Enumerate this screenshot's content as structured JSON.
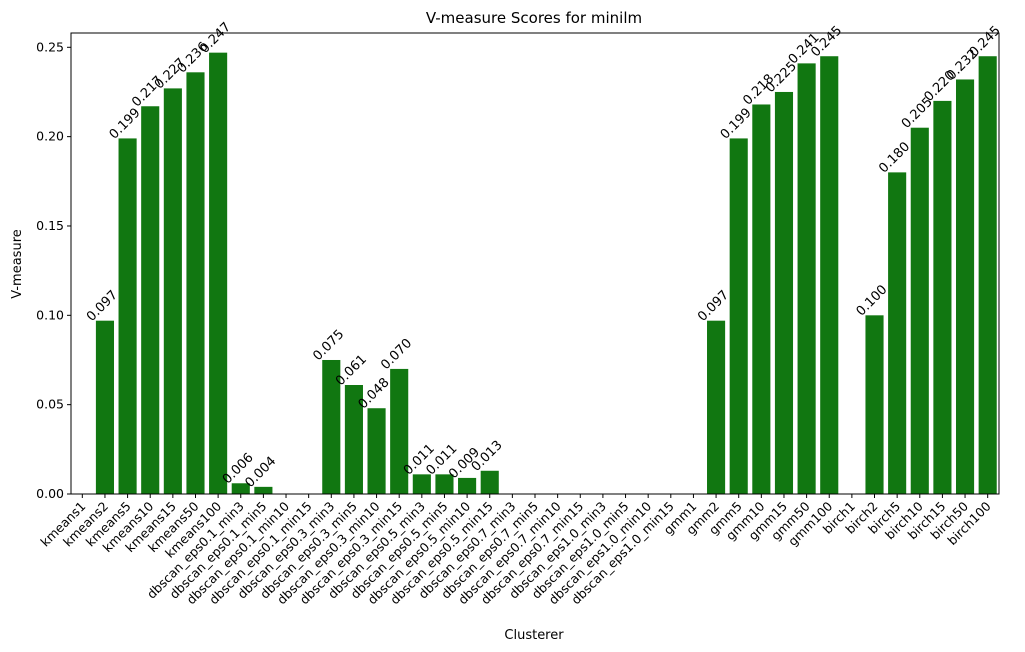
{
  "chart_data": {
    "type": "bar",
    "title": "V-measure Scores for minilm",
    "xlabel": "Clusterer",
    "ylabel": "V-measure",
    "ylim": [
      0,
      0.258
    ],
    "yticks": [
      "0.00",
      "0.05",
      "0.10",
      "0.15",
      "0.20",
      "0.25"
    ],
    "grid": false,
    "bar_color": "#117711",
    "categories": [
      "kmeans1",
      "kmeans2",
      "kmeans5",
      "kmeans10",
      "kmeans15",
      "kmeans50",
      "kmeans100",
      "dbscan_eps0.1_min3",
      "dbscan_eps0.1_min5",
      "dbscan_eps0.1_min10",
      "dbscan_eps0.1_min15",
      "dbscan_eps0.3_min3",
      "dbscan_eps0.3_min5",
      "dbscan_eps0.3_min10",
      "dbscan_eps0.3_min15",
      "dbscan_eps0.5_min3",
      "dbscan_eps0.5_min5",
      "dbscan_eps0.5_min10",
      "dbscan_eps0.5_min15",
      "dbscan_eps0.7_min3",
      "dbscan_eps0.7_min5",
      "dbscan_eps0.7_min10",
      "dbscan_eps0.7_min15",
      "dbscan_eps1.0_min3",
      "dbscan_eps1.0_min5",
      "dbscan_eps1.0_min10",
      "dbscan_eps1.0_min15",
      "gmm1",
      "gmm2",
      "gmm5",
      "gmm10",
      "gmm15",
      "gmm50",
      "gmm100",
      "birch1",
      "birch2",
      "birch5",
      "birch10",
      "birch15",
      "birch50",
      "birch100"
    ],
    "values": [
      0.0,
      0.097,
      0.199,
      0.217,
      0.227,
      0.236,
      0.247,
      0.006,
      0.004,
      0.0,
      0.0,
      0.075,
      0.061,
      0.048,
      0.07,
      0.011,
      0.011,
      0.009,
      0.013,
      0.0,
      0.0,
      0.0,
      0.0,
      0.0,
      0.0,
      0.0,
      0.0,
      0.0,
      0.097,
      0.199,
      0.218,
      0.225,
      0.241,
      0.245,
      0.0,
      0.1,
      0.18,
      0.205,
      0.22,
      0.232,
      0.245
    ],
    "data_labels": [
      null,
      "0.097",
      "0.199",
      "0.217",
      "0.227",
      "0.236",
      "0.247",
      "0.006",
      "0.004",
      null,
      null,
      "0.075",
      "0.061",
      "0.048",
      "0.070",
      "0.011",
      "0.011",
      "0.009",
      "0.013",
      null,
      null,
      null,
      null,
      null,
      null,
      null,
      null,
      null,
      "0.097",
      "0.199",
      "0.218",
      "0.225",
      "0.241",
      "0.245",
      null,
      "0.100",
      "0.180",
      "0.205",
      "0.220",
      "0.232",
      "0.245"
    ]
  }
}
